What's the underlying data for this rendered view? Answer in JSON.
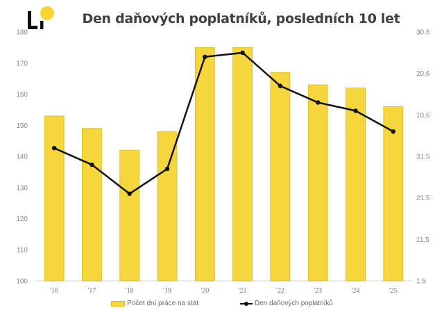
{
  "header": {
    "title": "Den daňových poplatníků, posledních 10 let",
    "logo_text": "L",
    "logo_dot_color": "#f7d633"
  },
  "colors": {
    "bar": "#f5d63c",
    "bar_border": "#d8b92b",
    "line": "#111111"
  },
  "legend": {
    "bar_label": "Počet dní práce na stát",
    "line_label": "Den daňových poplatníků"
  },
  "chart_data": {
    "type": "bar+line",
    "title": "Den daňových poplatníků, posledních 10 let",
    "categories": [
      "'16",
      "'17",
      "'18",
      "'19",
      "'20",
      "'21",
      "'22",
      "'23",
      "'24",
      "'25"
    ],
    "series": [
      {
        "name": "Počet dní práce na stát",
        "type": "bar",
        "axis": "left",
        "values": [
          153,
          149,
          142,
          148,
          175,
          175,
          167,
          163,
          162,
          156
        ]
      },
      {
        "name": "Den daňových poplatníků",
        "type": "line",
        "axis": "right",
        "values": [
          "2.6",
          "29.5",
          "22.5",
          "28.5",
          "24.6",
          "25.6",
          "17.6",
          "13.6",
          "11.6",
          "6.6"
        ],
        "days_since_1_5": [
          32,
          28,
          21,
          27,
          54,
          55,
          47,
          43,
          41,
          36
        ]
      }
    ],
    "left_axis": {
      "ylim": [
        100,
        180
      ],
      "ticks": [
        "100",
        "110",
        "120",
        "130",
        "140",
        "150",
        "160",
        "170",
        "180"
      ]
    },
    "right_axis": {
      "ticks": [
        "1.5",
        "11.5",
        "21.5",
        "31.5",
        "10.6",
        "20.6",
        "30.6"
      ]
    },
    "grid": false,
    "legend_position": "bottom"
  }
}
